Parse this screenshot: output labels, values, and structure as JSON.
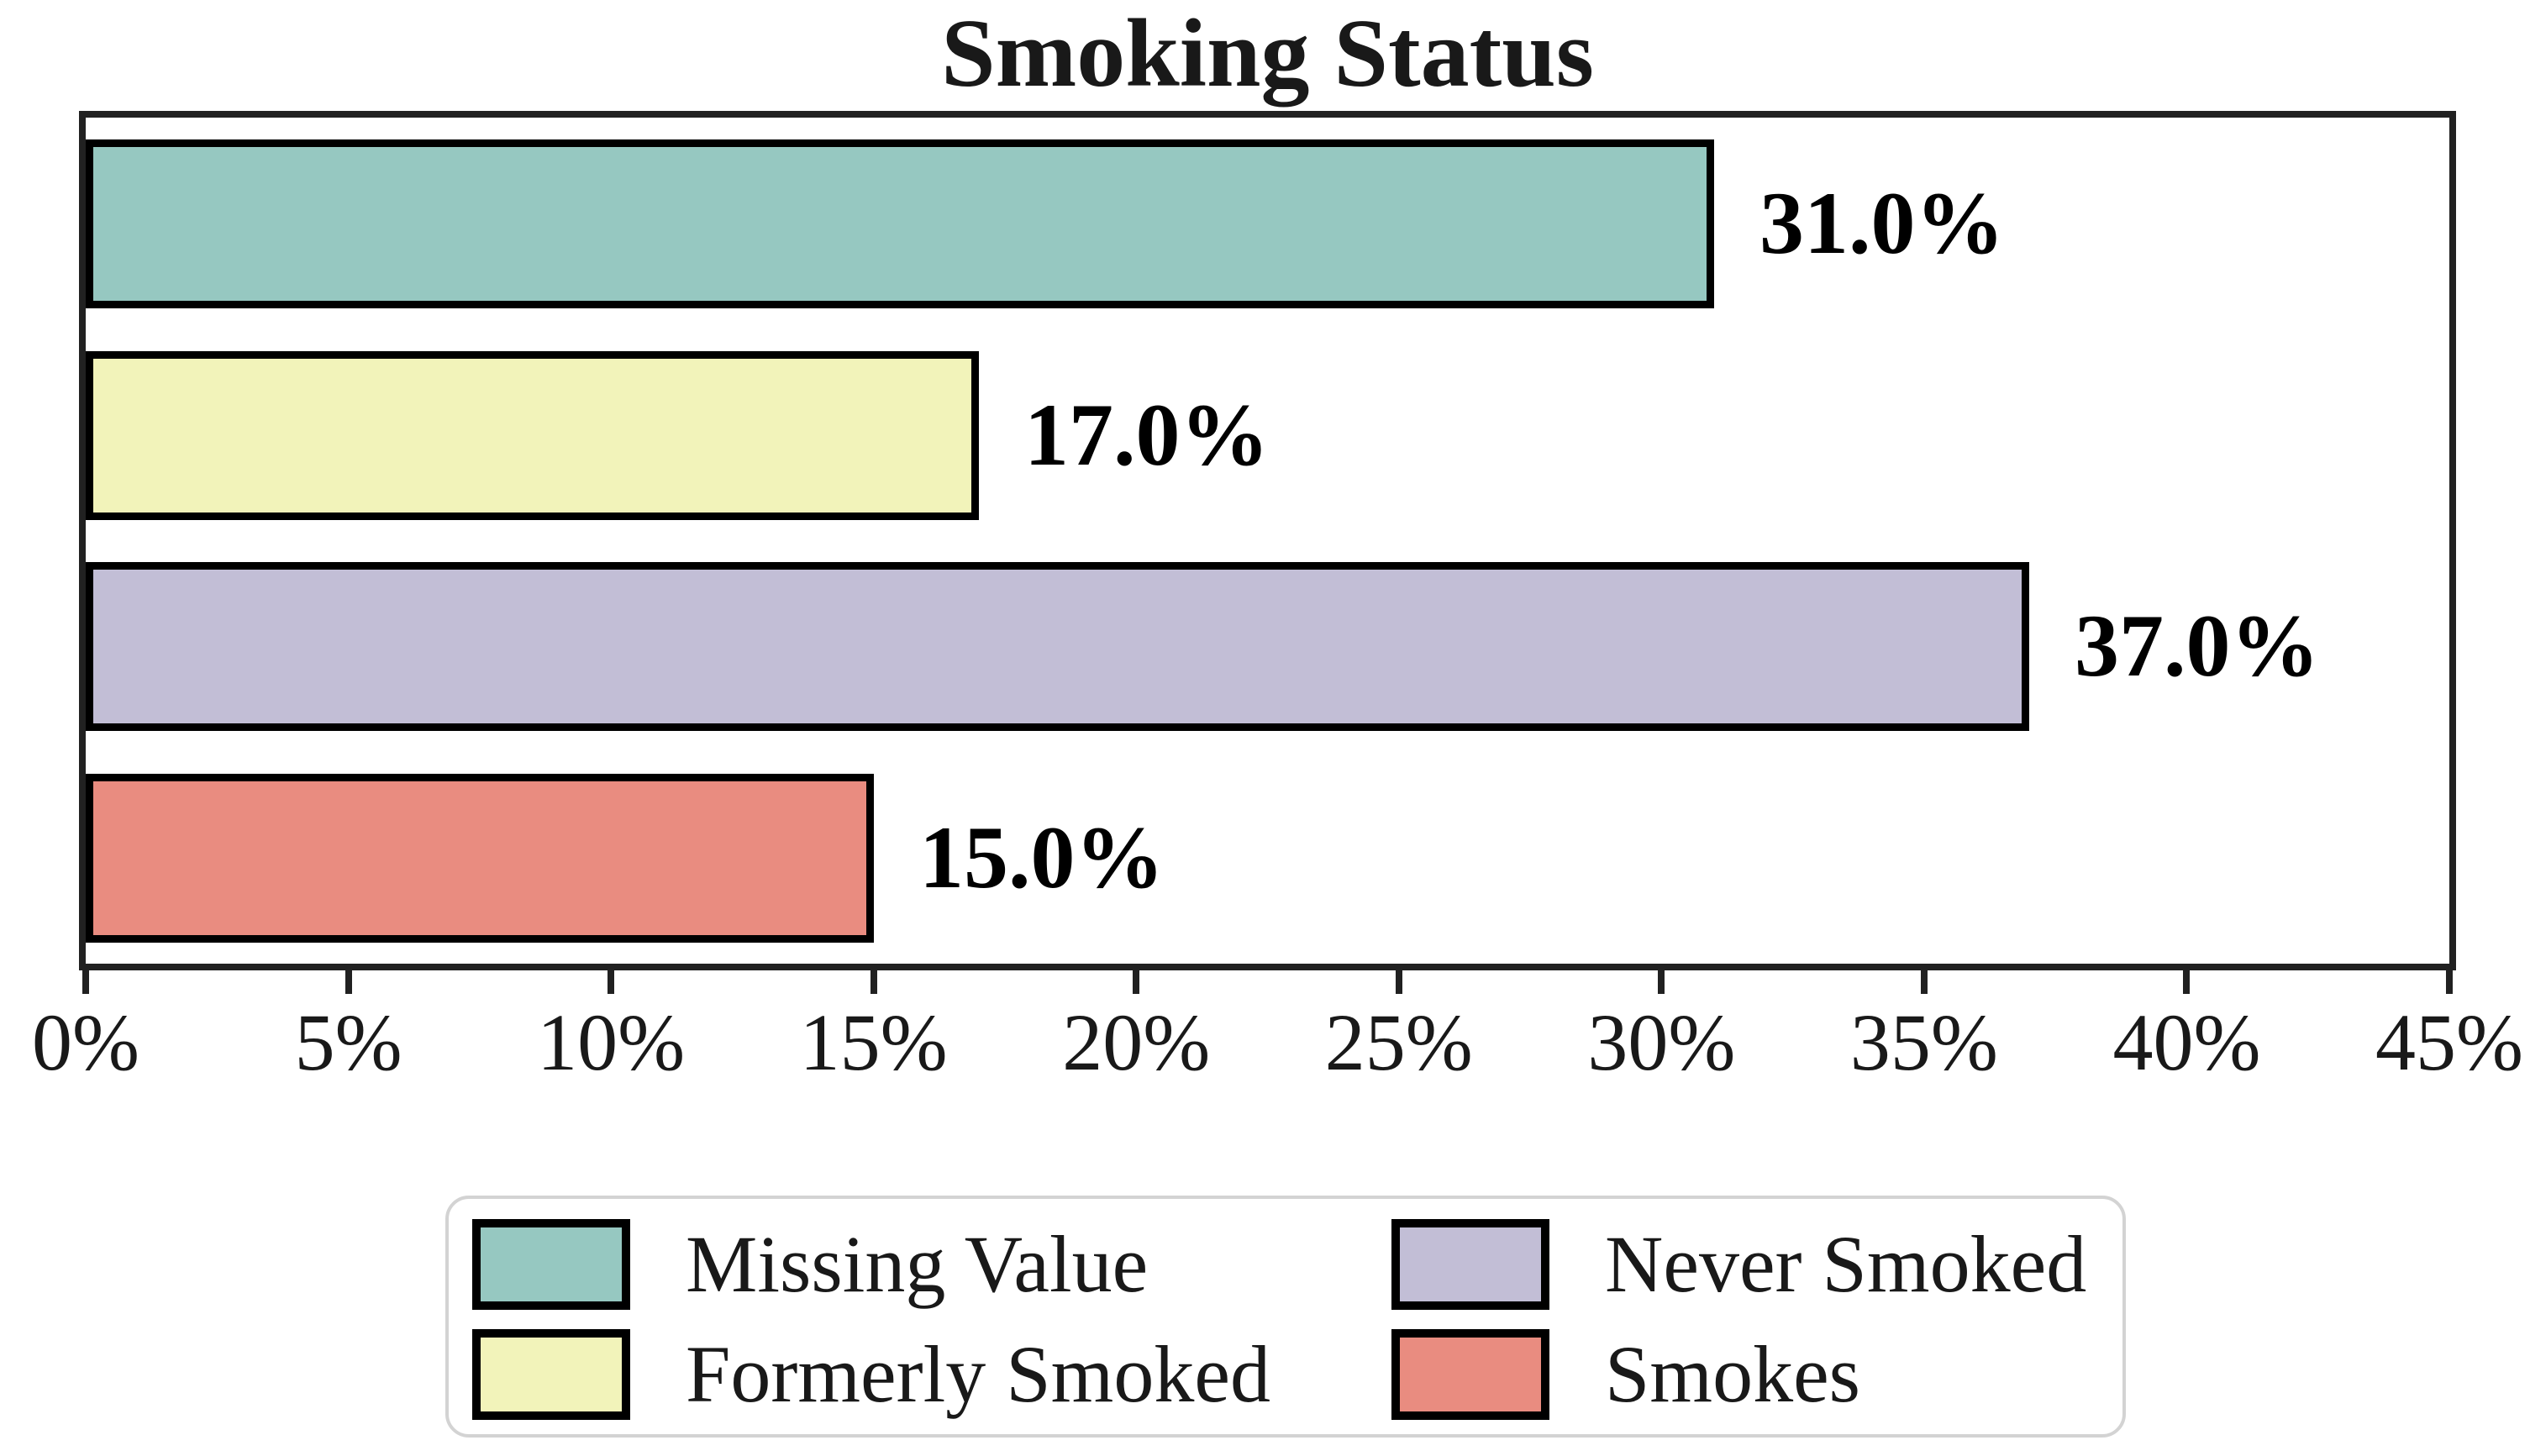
{
  "chart_data": {
    "type": "bar",
    "orientation": "horizontal",
    "title": "Smoking Status",
    "categories": [
      "Missing Value",
      "Formerly Smoked",
      "Never Smoked",
      "Smokes"
    ],
    "values": [
      31.0,
      17.0,
      37.0,
      15.0
    ],
    "value_labels": [
      "31.0%",
      "17.0%",
      "37.0%",
      "15.0%"
    ],
    "bar_colors": [
      "#96c8c1",
      "#f2f3ba",
      "#c2bed6",
      "#e98c80"
    ],
    "bar_edge_color": "#000000",
    "xlim": [
      0,
      45
    ],
    "x_ticks": [
      0,
      5,
      10,
      15,
      20,
      25,
      30,
      35,
      40,
      45
    ],
    "x_tick_labels": [
      "0%",
      "5%",
      "10%",
      "15%",
      "20%",
      "25%",
      "30%",
      "35%",
      "40%",
      "45%"
    ],
    "grid": false,
    "legend": {
      "position": "bottom",
      "columns": 2,
      "entries": [
        {
          "label": "Missing Value",
          "color": "#96c8c1"
        },
        {
          "label": "Never Smoked",
          "color": "#c2bed6"
        },
        {
          "label": "Formerly Smoked",
          "color": "#f2f3ba"
        },
        {
          "label": "Smokes",
          "color": "#e98c80"
        }
      ]
    }
  }
}
